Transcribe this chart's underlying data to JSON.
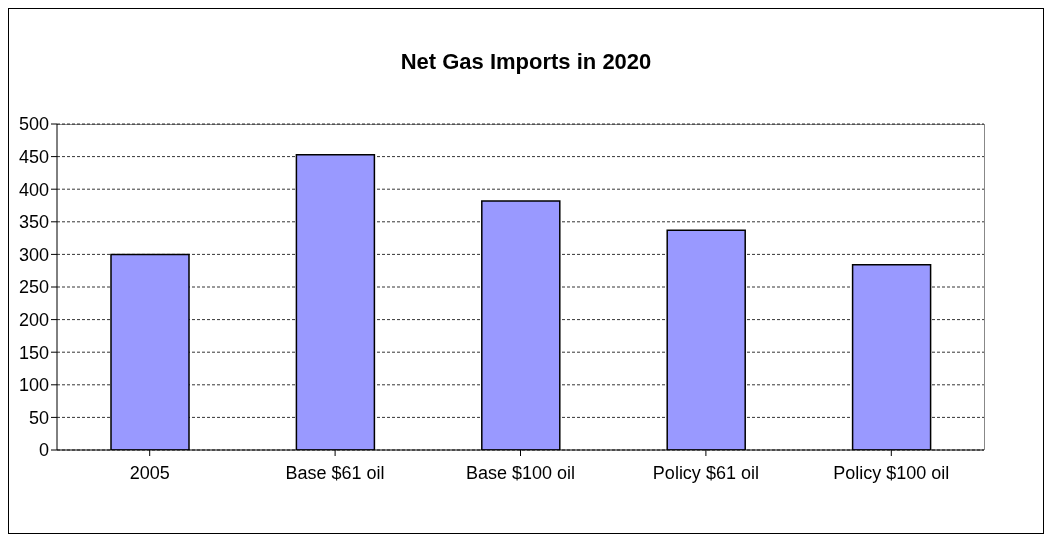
{
  "chart_data": {
    "type": "bar",
    "title": "Net Gas Imports in 2020",
    "categories": [
      "2005",
      "Base $61 oil",
      "Base $100 oil",
      "Policy $61 oil",
      "Policy $100 oil"
    ],
    "values": [
      300,
      453,
      382,
      337,
      284
    ],
    "color": "#9999ff",
    "ylim": [
      0,
      500
    ],
    "yticks": [
      0,
      50,
      100,
      150,
      200,
      250,
      300,
      350,
      400,
      450,
      500
    ],
    "grid": "y",
    "legend": false
  }
}
